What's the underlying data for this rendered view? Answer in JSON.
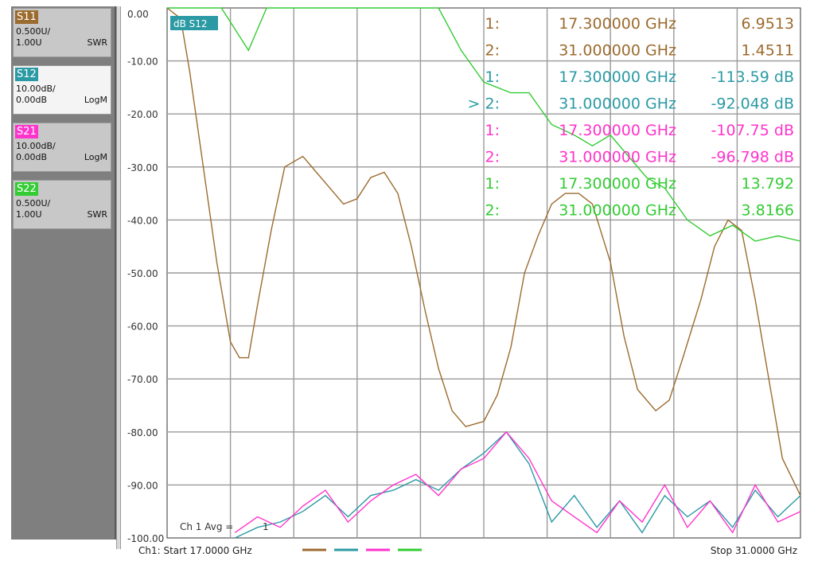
{
  "traces": [
    {
      "name": "S11",
      "line1": "0.500U/",
      "line2": "1.00U",
      "format": "SWR",
      "color": "#9c6b2e"
    },
    {
      "name": "S12",
      "line1": "10.00dB/",
      "line2": "0.00dB",
      "format": "LogM",
      "color": "#2b9aa4"
    },
    {
      "name": "S21",
      "line1": "10.00dB/",
      "line2": "0.00dB",
      "format": "LogM",
      "color": "#ff33cc"
    },
    {
      "name": "S22",
      "line1": "0.500U/",
      "line2": "1.00U",
      "format": "SWR",
      "color": "#33cc33"
    }
  ],
  "active_trace_label": "dB S12",
  "footer": {
    "start": "Ch1: Start  17.0000 GHz",
    "stop": "Stop  31.0000 GHz",
    "avg": "Ch 1 Avg =",
    "avg_value": "1"
  },
  "markers": [
    {
      "idx": "1:",
      "freq": "17.300000 GHz",
      "value": "6.9513",
      "color": "#9c6b2e"
    },
    {
      "idx": "2:",
      "freq": "31.000000 GHz",
      "value": "1.4511",
      "color": "#9c6b2e"
    },
    {
      "idx": "1:",
      "freq": "17.300000 GHz",
      "value": "-113.59 dB",
      "color": "#2b9aa4"
    },
    {
      "idx": "> 2:",
      "freq": "31.000000 GHz",
      "value": "-92.048 dB",
      "color": "#2b9aa4"
    },
    {
      "idx": "1:",
      "freq": "17.300000 GHz",
      "value": "-107.75 dB",
      "color": "#ff33cc"
    },
    {
      "idx": "2:",
      "freq": "31.000000 GHz",
      "value": "-96.798 dB",
      "color": "#ff33cc"
    },
    {
      "idx": "1:",
      "freq": "17.300000 GHz",
      "value": "13.792",
      "color": "#33cc33"
    },
    {
      "idx": "2:",
      "freq": "31.000000 GHz",
      "value": "3.8166",
      "color": "#33cc33"
    }
  ],
  "chart_data": {
    "type": "line",
    "xlim": [
      17.0,
      31.0
    ],
    "ylim": [
      -100,
      0
    ],
    "ytick_labels": [
      "0.00",
      "-10.00",
      "-20.00",
      "-30.00",
      "-40.00",
      "-50.00",
      "-60.00",
      "-70.00",
      "-80.00",
      "-90.00",
      "-100.00"
    ],
    "grid": true,
    "series": [
      {
        "name": "S11",
        "color": "#9c6b2e",
        "x": [
          17.0,
          17.3,
          17.5,
          17.8,
          18.1,
          18.4,
          18.6,
          18.8,
          19.0,
          19.3,
          19.6,
          20.0,
          20.3,
          20.6,
          20.9,
          21.2,
          21.5,
          21.8,
          22.1,
          22.4,
          22.7,
          23.0,
          23.3,
          23.6,
          24.0,
          24.3,
          24.6,
          24.9,
          25.2,
          25.5,
          25.8,
          26.1,
          26.4,
          26.8,
          27.1,
          27.4,
          27.8,
          28.1,
          28.4,
          28.8,
          29.1,
          29.4,
          29.7,
          30.0,
          30.3,
          30.6,
          31.0
        ],
        "y": [
          0,
          -2,
          -12,
          -30,
          -48,
          -63,
          -66,
          -66,
          -56,
          -42,
          -30,
          -28,
          -31,
          -34,
          -37,
          -36,
          -32,
          -31,
          -35,
          -45,
          -57,
          -68,
          -76,
          -79,
          -78,
          -73,
          -64,
          -50,
          -43,
          -37,
          -35,
          -35,
          -37,
          -48,
          -62,
          -72,
          -76,
          -74,
          -66,
          -55,
          -45,
          -40,
          -42,
          -55,
          -70,
          -85,
          -92
        ]
      },
      {
        "name": "S12",
        "color": "#2b9aa4",
        "x": [
          18.5,
          19.0,
          19.5,
          20.0,
          20.5,
          21.0,
          21.5,
          22.0,
          22.5,
          23.0,
          23.5,
          24.0,
          24.5,
          25.0,
          25.5,
          26.0,
          26.5,
          27.0,
          27.5,
          28.0,
          28.5,
          29.0,
          29.5,
          30.0,
          30.5,
          31.0
        ],
        "y": [
          -100,
          -98,
          -97,
          -95,
          -92,
          -96,
          -92,
          -91,
          -89,
          -91,
          -87,
          -84,
          -80,
          -86,
          -97,
          -92,
          -98,
          -93,
          -99,
          -92,
          -96,
          -93,
          -98,
          -91,
          -96,
          -92
        ]
      },
      {
        "name": "S21",
        "color": "#ff33cc",
        "x": [
          18.5,
          19.0,
          19.5,
          20.0,
          20.5,
          21.0,
          21.5,
          22.0,
          22.5,
          23.0,
          23.5,
          24.0,
          24.5,
          25.0,
          25.5,
          26.0,
          26.5,
          27.0,
          27.5,
          28.0,
          28.5,
          29.0,
          29.5,
          30.0,
          30.5,
          31.0
        ],
        "y": [
          -99,
          -96,
          -98,
          -94,
          -91,
          -97,
          -93,
          -90,
          -88,
          -92,
          -87,
          -85,
          -80,
          -85,
          -93,
          -96,
          -99,
          -93,
          -97,
          -90,
          -98,
          -93,
          -99,
          -90,
          -97,
          -95
        ]
      },
      {
        "name": "S22",
        "color": "#33cc33",
        "x": [
          17.0,
          18.2,
          18.5,
          18.8,
          19.2,
          20.0,
          21.5,
          22.5,
          23.0,
          23.5,
          24.0,
          24.6,
          25.0,
          25.5,
          26.0,
          26.4,
          26.8,
          27.2,
          27.6,
          28.0,
          28.5,
          29.0,
          29.5,
          30.0,
          30.5,
          31.0
        ],
        "y": [
          0,
          0,
          -4,
          -8,
          0,
          0,
          0,
          0,
          0,
          -8,
          -14,
          -16,
          -16,
          -22,
          -24,
          -26,
          -24,
          -28,
          -32,
          -34,
          -40,
          -43,
          -41,
          -44,
          -43,
          -44
        ]
      }
    ]
  }
}
